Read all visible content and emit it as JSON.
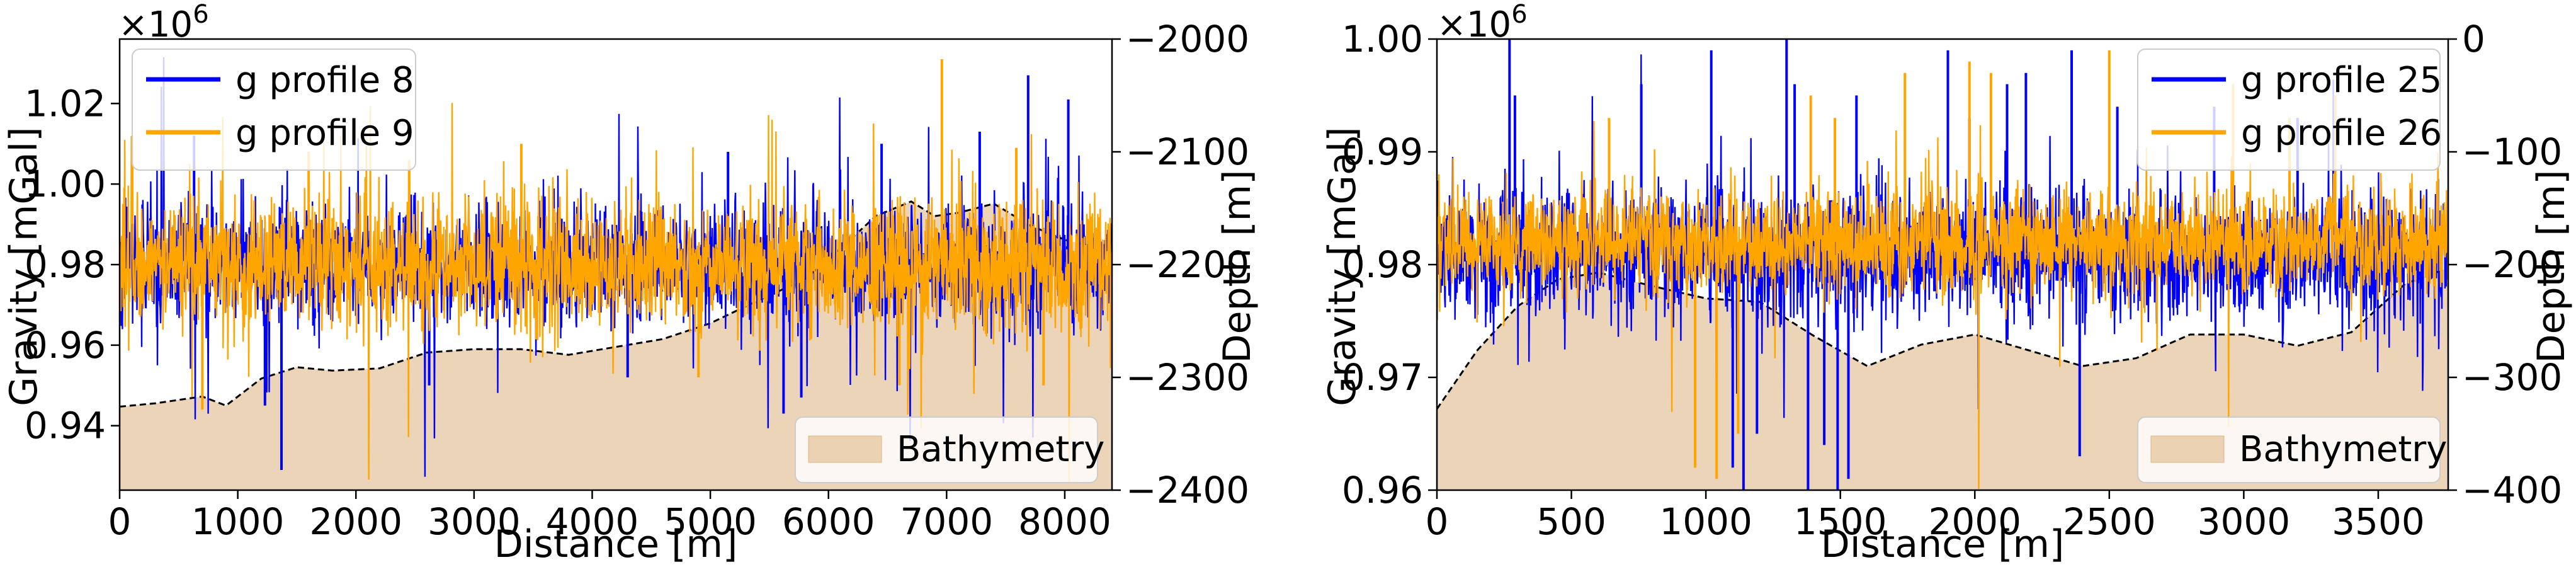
{
  "chart_data": [
    {
      "type": "line",
      "xlabel": "Distance [m]",
      "ylabel": "Gravity [mGal]",
      "y2label": "Depth [m]",
      "y_multiplier_label": "×10",
      "y_multiplier_exp": "6",
      "xlim": [
        0,
        8400
      ],
      "ylim": [
        0.924,
        1.036
      ],
      "y2lim": [
        -2400,
        -2000
      ],
      "x_ticks": [
        0,
        1000,
        2000,
        3000,
        4000,
        5000,
        6000,
        7000,
        8000
      ],
      "x_tick_labels": [
        "0",
        "1000",
        "2000",
        "3000",
        "4000",
        "5000",
        "6000",
        "7000",
        "8000"
      ],
      "y_ticks": [
        0.94,
        0.96,
        0.98,
        1.0,
        1.02
      ],
      "y_tick_labels": [
        "0.94",
        "0.96",
        "0.98",
        "1.00",
        "1.02"
      ],
      "y2_ticks": [
        -2400,
        -2300,
        -2200,
        -2100,
        -2000
      ],
      "y2_tick_labels": [
        "−2400",
        "−2300",
        "−2200",
        "−2100",
        "−2000"
      ],
      "legend_position": "upper-left",
      "series": [
        {
          "name": "g profile 8",
          "color": "#0000ff",
          "mean": 0.98,
          "noise": 0.013,
          "spikes": [
            [
              630,
              1.012
            ],
            [
              1230,
              0.945
            ],
            [
              1370,
              0.929
            ],
            [
              2620,
              0.95
            ],
            [
              4300,
              0.952
            ],
            [
              5150,
              1.008
            ],
            [
              5620,
              0.943
            ],
            [
              5770,
              0.947
            ],
            [
              6450,
              1.01
            ],
            [
              7280,
              1.013
            ],
            [
              7690,
              1.027
            ],
            [
              8030,
              1.021
            ]
          ]
        },
        {
          "name": "g profile 9",
          "color": "#ffa500",
          "mean": 0.98,
          "noise": 0.014,
          "spikes": [
            [
              700,
              0.944
            ],
            [
              1600,
              1.008
            ],
            [
              2450,
              1.006
            ],
            [
              3400,
              1.01
            ],
            [
              4900,
              0.952
            ],
            [
              6600,
              0.95
            ],
            [
              6960,
              1.031
            ],
            [
              7590,
              1.009
            ],
            [
              7820,
              0.95
            ]
          ]
        }
      ],
      "bathymetry": {
        "name": "Bathymetry",
        "color": "#deb887",
        "x": [
          0,
          300,
          700,
          900,
          1200,
          1500,
          1800,
          2200,
          2600,
          3000,
          3400,
          3800,
          4200,
          4600,
          5000,
          5400,
          5800,
          6100,
          6400,
          6700,
          6900,
          7100,
          7400,
          7700,
          8000,
          8400
        ],
        "depth": [
          -2326,
          -2323,
          -2317,
          -2325,
          -2301,
          -2291,
          -2294,
          -2292,
          -2278,
          -2275,
          -2275,
          -2280,
          -2273,
          -2266,
          -2252,
          -2232,
          -2213,
          -2186,
          -2157,
          -2144,
          -2157,
          -2154,
          -2146,
          -2165,
          -2178,
          -2188
        ]
      },
      "legend_bottom": "Bathymetry"
    },
    {
      "type": "line",
      "xlabel": "Distance [m]",
      "ylabel": "Gravity [mGal]",
      "y2label": "Depth [m]",
      "y_multiplier_label": "×10",
      "y_multiplier_exp": "6",
      "xlim": [
        0,
        3760
      ],
      "ylim": [
        0.96,
        1.0
      ],
      "y2lim": [
        -400,
        0
      ],
      "x_ticks": [
        0,
        500,
        1000,
        1500,
        2000,
        2500,
        3000,
        3500
      ],
      "x_tick_labels": [
        "0",
        "500",
        "1000",
        "1500",
        "2000",
        "2500",
        "3000",
        "3500"
      ],
      "y_ticks": [
        0.96,
        0.97,
        0.98,
        0.99,
        1.0
      ],
      "y_tick_labels": [
        "0.96",
        "0.97",
        "0.98",
        "0.99",
        "1.00"
      ],
      "y2_ticks": [
        -400,
        -300,
        -200,
        -100,
        0
      ],
      "y2_tick_labels": [
        "−400",
        "−300",
        "−200",
        "−100",
        "0"
      ],
      "legend_position": "upper-right",
      "series": [
        {
          "name": "g profile 25",
          "color": "#0000ff",
          "mean": 0.981,
          "noise": 0.005,
          "spikes": [
            [
              270,
              1.0
            ],
            [
              290,
              0.995
            ],
            [
              760,
              0.996
            ],
            [
              1020,
              0.999
            ],
            [
              1100,
              0.962
            ],
            [
              1140,
              0.96
            ],
            [
              1190,
              0.965
            ],
            [
              1300,
              1.0
            ],
            [
              1330,
              0.996
            ],
            [
              1380,
              0.96
            ],
            [
              1440,
              0.964
            ],
            [
              1490,
              0.96
            ],
            [
              1530,
              0.961
            ],
            [
              1560,
              0.995
            ],
            [
              1900,
              0.999
            ],
            [
              1980,
              0.993
            ],
            [
              2120,
              0.996
            ],
            [
              2190,
              0.997
            ],
            [
              2360,
              0.999
            ],
            [
              2390,
              0.963
            ],
            [
              2530,
              0.994
            ],
            [
              2890,
              0.994
            ],
            [
              3200,
              0.993
            ]
          ]
        },
        {
          "name": "g profile 26",
          "color": "#ffa500",
          "mean": 0.982,
          "noise": 0.004,
          "spikes": [
            [
              640,
              0.993
            ],
            [
              960,
              0.962
            ],
            [
              1040,
              0.961
            ],
            [
              1120,
              0.965
            ],
            [
              1390,
              0.995
            ],
            [
              1480,
              0.993
            ],
            [
              1740,
              0.997
            ],
            [
              1980,
              0.998
            ],
            [
              2060,
              0.997
            ],
            [
              2500,
              0.999
            ],
            [
              2960,
              0.996
            ],
            [
              3170,
              0.993
            ],
            [
              3340,
              0.995
            ]
          ]
        }
      ],
      "bathymetry": {
        "name": "Bathymetry",
        "color": "#deb887",
        "x": [
          0,
          150,
          300,
          450,
          600,
          800,
          1000,
          1200,
          1400,
          1600,
          1800,
          2000,
          2200,
          2400,
          2600,
          2800,
          3000,
          3200,
          3400,
          3600,
          3760
        ],
        "depth": [
          -328,
          -276,
          -237,
          -213,
          -207,
          -219,
          -230,
          -233,
          -263,
          -290,
          -271,
          -262,
          -276,
          -290,
          -283,
          -262,
          -262,
          -272,
          -260,
          -217,
          -203
        ]
      },
      "legend_bottom": "Bathymetry"
    }
  ]
}
